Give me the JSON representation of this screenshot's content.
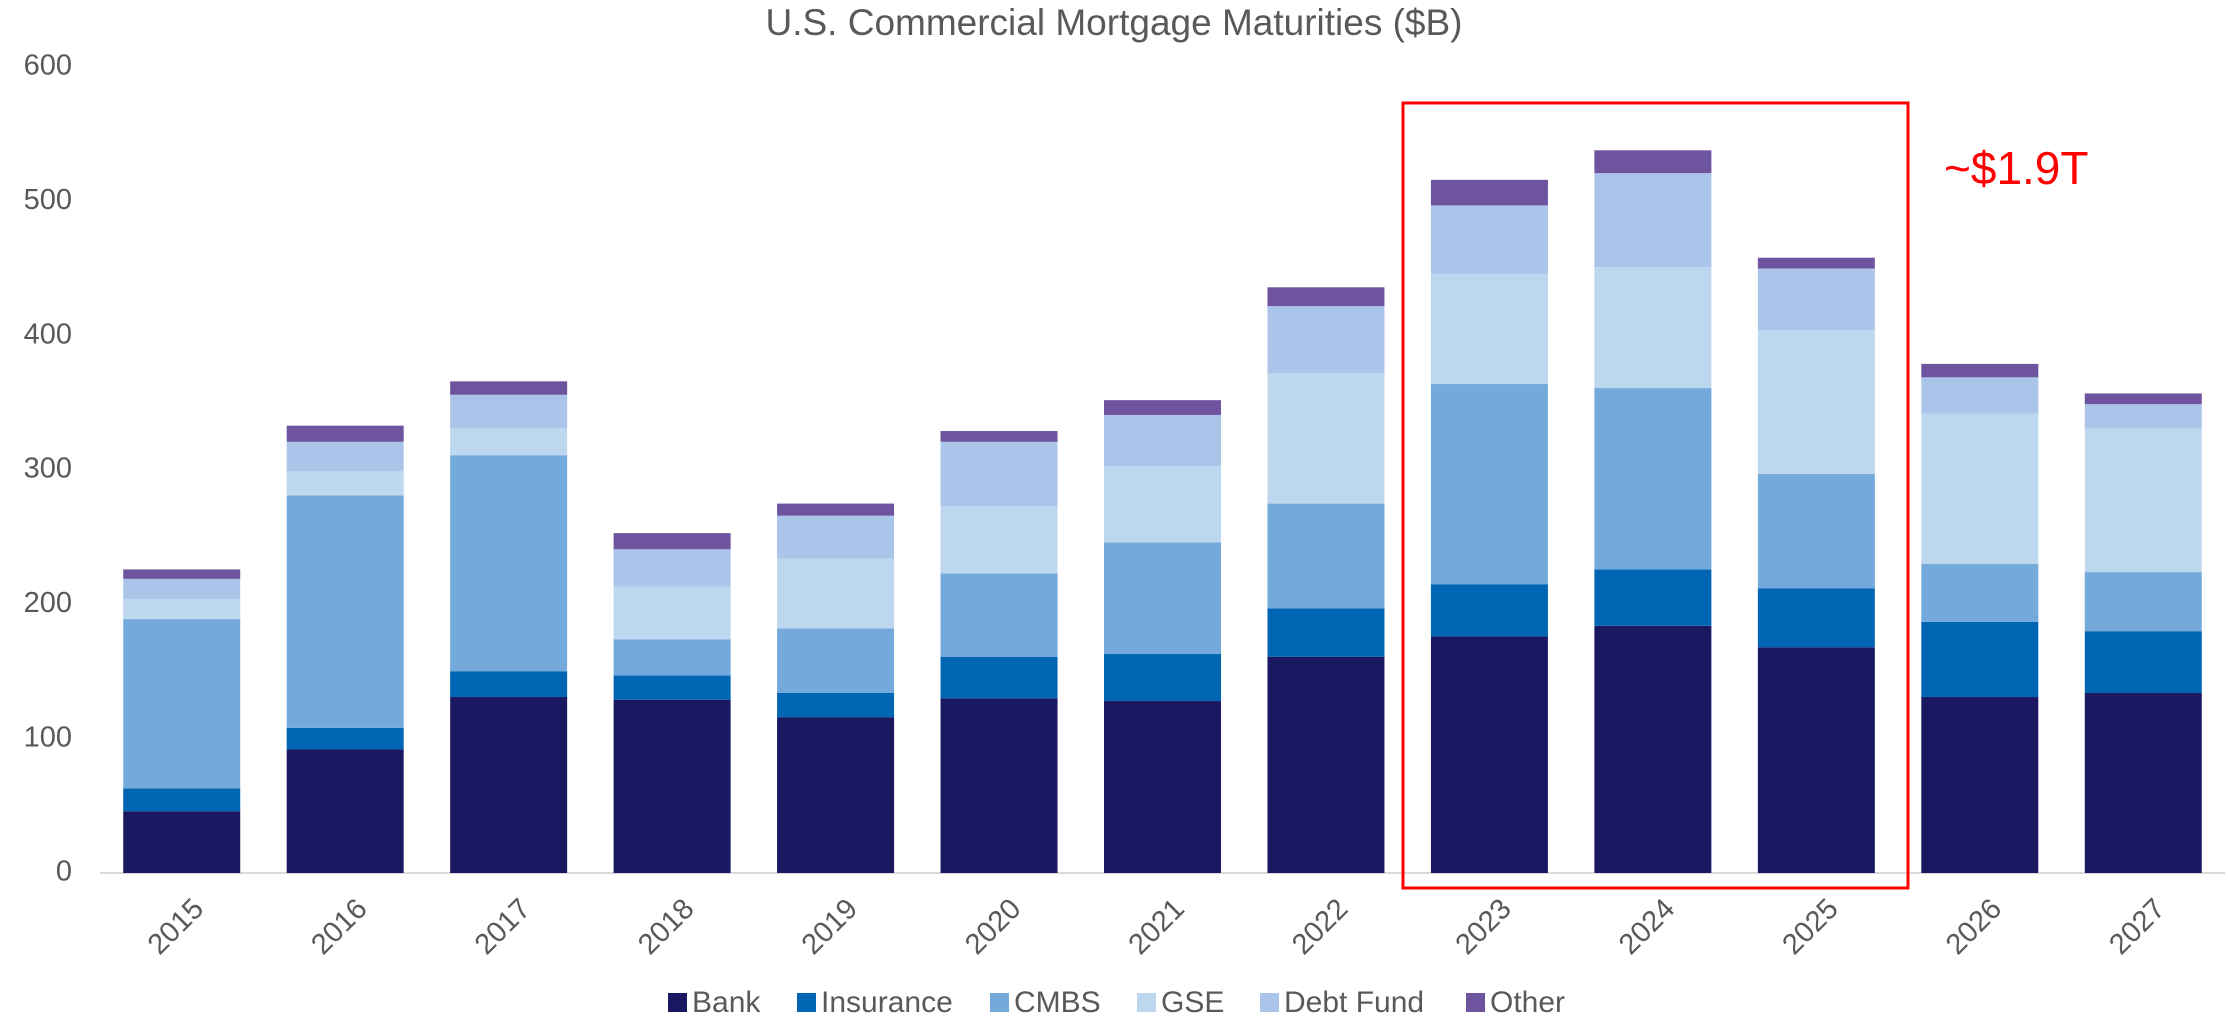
{
  "chart_data": {
    "type": "stacked_bar",
    "title": "U.S. Commercial Mortgage Maturities ($B)",
    "categories": [
      "2015",
      "2016",
      "2017",
      "2018",
      "2019",
      "2020",
      "2021",
      "2022",
      "2023",
      "2024",
      "2025",
      "2026",
      "2027"
    ],
    "series": [
      {
        "name": "Bank",
        "color": "#1b1862",
        "values": [
          46,
          92,
          131,
          129,
          116,
          130,
          128,
          161,
          176,
          184,
          168,
          131,
          134
        ]
      },
      {
        "name": "Insurance",
        "color": "#0066b3",
        "values": [
          17,
          16,
          19,
          18,
          18,
          31,
          35,
          36,
          39,
          42,
          44,
          56,
          46
        ]
      },
      {
        "name": "CMBS",
        "color": "#74a9dc",
        "values": [
          126,
          173,
          161,
          27,
          48,
          62,
          83,
          78,
          149,
          135,
          85,
          43,
          44
        ]
      },
      {
        "name": "GSE",
        "color": "#bdd7ee",
        "values": [
          15,
          18,
          20,
          39,
          52,
          50,
          57,
          97,
          82,
          90,
          107,
          112,
          107
        ]
      },
      {
        "name": "Debt Fund",
        "color": "#aac4ea",
        "values": [
          15,
          22,
          25,
          28,
          32,
          48,
          38,
          50,
          51,
          70,
          46,
          27,
          18
        ]
      },
      {
        "name": "Other",
        "color": "#6e539e",
        "values": [
          7,
          12,
          10,
          12,
          9,
          8,
          11,
          14,
          19,
          17,
          8,
          10,
          8
        ]
      }
    ],
    "ylim": [
      0,
      600
    ],
    "yticks": [
      0,
      100,
      200,
      300,
      400,
      500,
      600
    ],
    "grid": false,
    "annotation": "~$1.9T",
    "legend": "bottom"
  }
}
